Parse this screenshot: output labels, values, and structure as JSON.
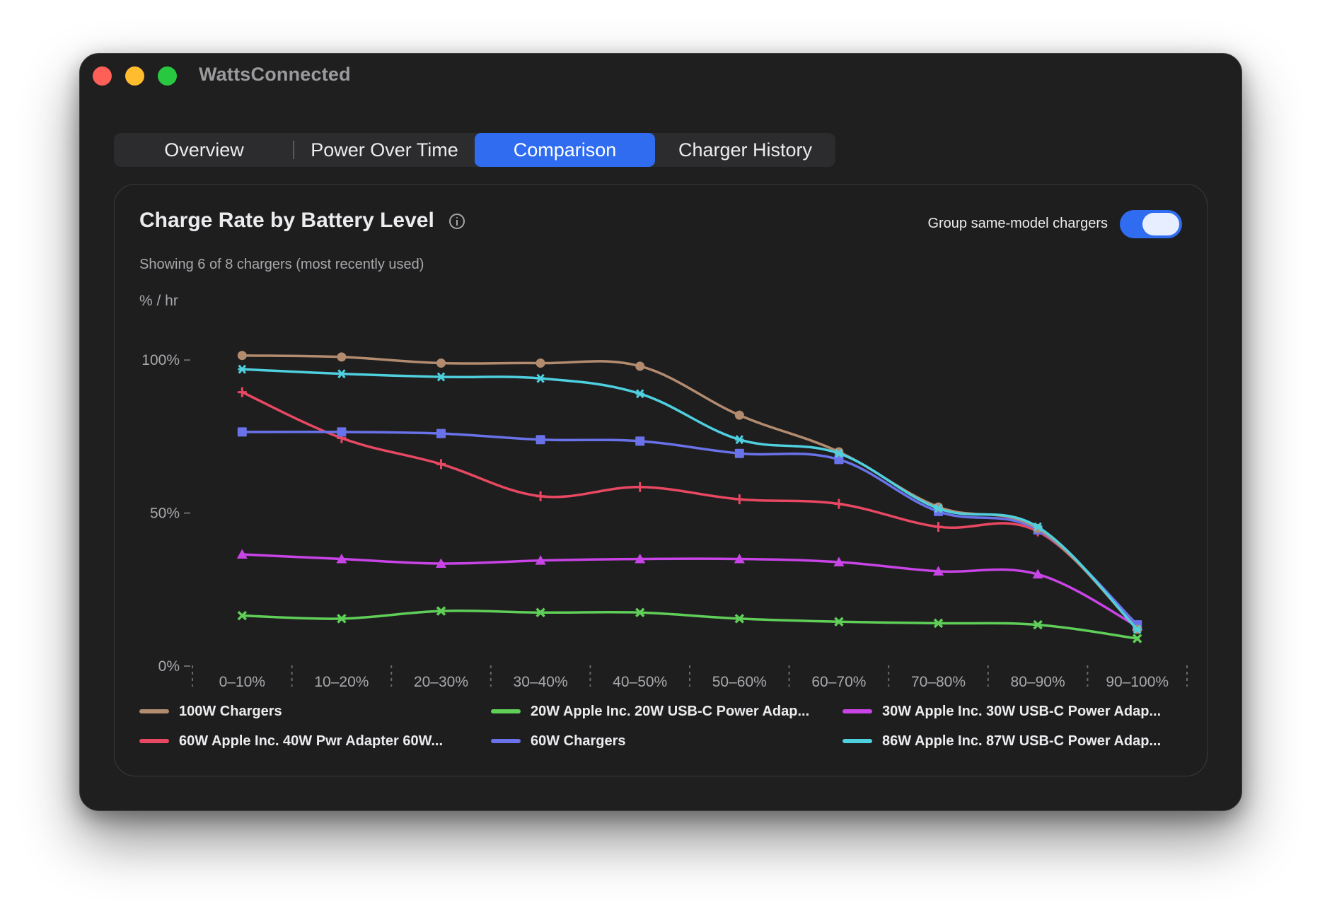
{
  "window": {
    "title": "WattsConnected"
  },
  "tabs": [
    "Overview",
    "Power Over Time",
    "Comparison",
    "Charger History"
  ],
  "active_tab": 2,
  "card": {
    "title": "Charge Rate by Battery Level",
    "subtitle": "Showing 6 of 8 chargers (most recently used)",
    "toggle_label": "Group same-model chargers",
    "toggle_on": true
  },
  "colors": {
    "accent": "#2f6cf0",
    "grid_tick": "#6a6a6e",
    "axis_text": "#a9a9ad"
  },
  "chart_data": {
    "type": "line",
    "title": "Charge Rate by Battery Level",
    "ylabel": "% / hr",
    "xlabel": "",
    "categories": [
      "0–10%",
      "10–20%",
      "20–30%",
      "30–40%",
      "40–50%",
      "50–60%",
      "60–70%",
      "70–80%",
      "80–90%",
      "90–100%"
    ],
    "ylim": [
      0,
      125
    ],
    "yticks": [
      0,
      50,
      100
    ],
    "ytick_labels": [
      "0%",
      "50%",
      "100%"
    ],
    "grid": false,
    "legend_position": "bottom",
    "series": [
      {
        "name": "100W Chargers",
        "color": "#b38c6f",
        "marker": "circle",
        "values": [
          101.5,
          101,
          99,
          99,
          98,
          82,
          70,
          52,
          45,
          12
        ]
      },
      {
        "name": "20W Apple Inc. 20W USB-C Power Adap...",
        "color": "#5fcf58",
        "marker": "x",
        "values": [
          16.5,
          15.5,
          18,
          17.5,
          17.5,
          15.5,
          14.5,
          14,
          13.5,
          9
        ]
      },
      {
        "name": "30W Apple Inc. 30W USB-C Power Adap...",
        "color": "#c944e6",
        "marker": "triangle",
        "values": [
          36.5,
          35,
          33.5,
          34.5,
          35,
          35,
          34,
          31,
          30,
          13
        ]
      },
      {
        "name": "60W Apple Inc. 40W Pwr Adapter 60W...",
        "color": "#e94862",
        "marker": "plus",
        "values": [
          89.5,
          74.5,
          66,
          55.5,
          58.5,
          54.5,
          53,
          45.5,
          44,
          12.5
        ]
      },
      {
        "name": "60W Chargers",
        "color": "#6a72e9",
        "marker": "square",
        "values": [
          76.5,
          76.5,
          76,
          74,
          73.5,
          69.5,
          67.5,
          50.5,
          44.5,
          13.5
        ]
      },
      {
        "name": "86W Apple Inc. 87W USB-C Power Adap...",
        "color": "#4fd0df",
        "marker": "asterisk",
        "values": [
          97,
          95.5,
          94.5,
          94,
          89,
          74,
          69.5,
          51.5,
          45.5,
          12
        ]
      }
    ]
  }
}
